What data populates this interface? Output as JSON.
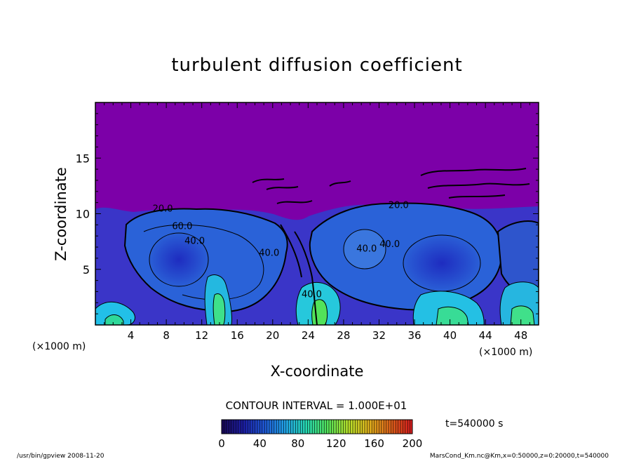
{
  "chart_data": {
    "type": "heatmap",
    "title": "turbulent diffusion coefficient",
    "xlabel": "X-coordinate",
    "ylabel": "Z-coordinate",
    "x_unit_left": "(×1000 m)",
    "x_unit_right": "(×1000 m)",
    "xlim": [
      0,
      50
    ],
    "ylim": [
      0,
      20
    ],
    "x_ticks": [
      4,
      8,
      12,
      16,
      20,
      24,
      28,
      32,
      36,
      40,
      44,
      48
    ],
    "y_ticks": [
      5,
      10,
      15
    ],
    "contour_interval_text": "CONTOUR INTERVAL = 1.000E+01",
    "contour_labels": [
      {
        "text": "20.0",
        "x": 7.6,
        "z": 10.2
      },
      {
        "text": "60.0",
        "x": 9.8,
        "z": 8.6
      },
      {
        "text": "40.0",
        "x": 11.2,
        "z": 7.3
      },
      {
        "text": "40.0",
        "x": 19.6,
        "z": 6.2
      },
      {
        "text": "40.0",
        "x": 24.4,
        "z": 2.5
      },
      {
        "text": "40.0",
        "x": 30.6,
        "z": 6.6
      },
      {
        "text": "40.0",
        "x": 33.2,
        "z": 7.0
      },
      {
        "text": "20.0",
        "x": 34.2,
        "z": 10.5
      }
    ],
    "colorbar": {
      "min": 0,
      "max": 200,
      "tick_labels": [
        "0",
        "40",
        "80",
        "120",
        "160",
        "200"
      ],
      "colors": [
        "#1a0a5a",
        "#1c1fa8",
        "#1f5ad8",
        "#21a5e8",
        "#27d8b0",
        "#52e25a",
        "#b6e02a",
        "#e2b21c",
        "#e0641a",
        "#d81e1e"
      ]
    },
    "background_color": "#7c00a8",
    "time_label": "t=540000 s"
  },
  "footer": {
    "left": "/usr/bin/gpview   2008-11-20",
    "right": "MarsCond_Km.nc@Km,x=0:50000,z=0:20000,t=540000"
  }
}
